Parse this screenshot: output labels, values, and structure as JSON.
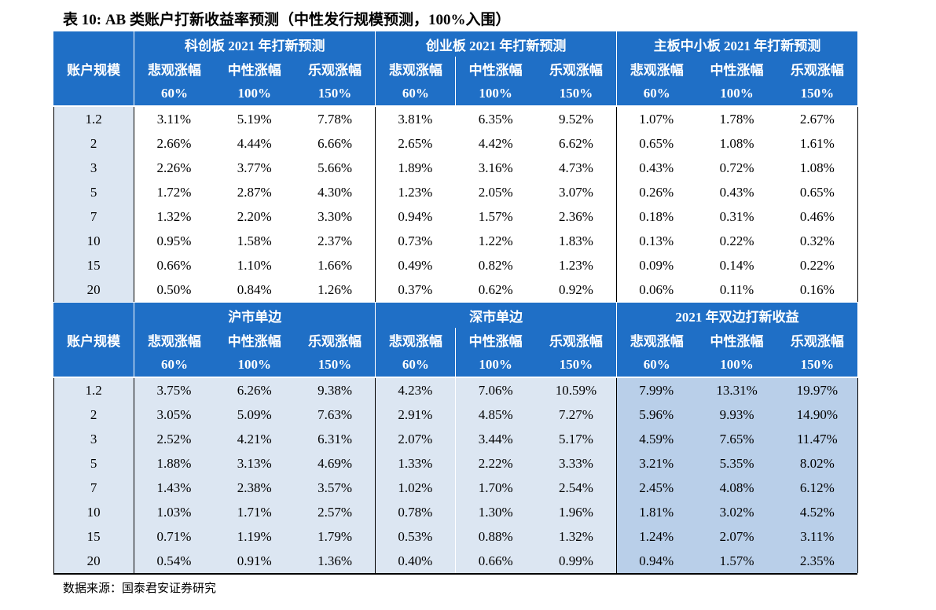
{
  "title": "表 10: AB 类账户打新收益率预测（中性发行规模预测，100%入围）",
  "blocks": [
    {
      "row_header": "账户规模",
      "groups": [
        "科创板 2021 年打新预测",
        "创业板 2021 年打新预测",
        "主板中小板 2021 年打新预测"
      ],
      "subheaders": [
        {
          "label": "悲观涨幅",
          "pct": "60%"
        },
        {
          "label": "中性涨幅",
          "pct": "100%"
        },
        {
          "label": "乐观涨幅",
          "pct": "150%"
        },
        {
          "label": "悲观涨幅",
          "pct": "60%"
        },
        {
          "label": "中性涨幅",
          "pct": "100%"
        },
        {
          "label": "乐观涨幅",
          "pct": "150%"
        },
        {
          "label": "悲观涨幅",
          "pct": "60%"
        },
        {
          "label": "中性涨幅",
          "pct": "100%"
        },
        {
          "label": "乐观涨幅",
          "pct": "150%"
        }
      ],
      "rows": [
        {
          "scale": "1.2",
          "values": [
            "3.11%",
            "5.19%",
            "7.78%",
            "3.81%",
            "6.35%",
            "9.52%",
            "1.07%",
            "1.78%",
            "2.67%"
          ]
        },
        {
          "scale": "2",
          "values": [
            "2.66%",
            "4.44%",
            "6.66%",
            "2.65%",
            "4.42%",
            "6.62%",
            "0.65%",
            "1.08%",
            "1.61%"
          ]
        },
        {
          "scale": "3",
          "values": [
            "2.26%",
            "3.77%",
            "5.66%",
            "1.89%",
            "3.16%",
            "4.73%",
            "0.43%",
            "0.72%",
            "1.08%"
          ]
        },
        {
          "scale": "5",
          "values": [
            "1.72%",
            "2.87%",
            "4.30%",
            "1.23%",
            "2.05%",
            "3.07%",
            "0.26%",
            "0.43%",
            "0.65%"
          ]
        },
        {
          "scale": "7",
          "values": [
            "1.32%",
            "2.20%",
            "3.30%",
            "0.94%",
            "1.57%",
            "2.36%",
            "0.18%",
            "0.31%",
            "0.46%"
          ]
        },
        {
          "scale": "10",
          "values": [
            "0.95%",
            "1.58%",
            "2.37%",
            "0.73%",
            "1.22%",
            "1.83%",
            "0.13%",
            "0.22%",
            "0.32%"
          ]
        },
        {
          "scale": "15",
          "values": [
            "0.66%",
            "1.10%",
            "1.66%",
            "0.49%",
            "0.82%",
            "1.23%",
            "0.09%",
            "0.14%",
            "0.22%"
          ]
        },
        {
          "scale": "20",
          "values": [
            "0.50%",
            "0.84%",
            "1.26%",
            "0.37%",
            "0.62%",
            "0.92%",
            "0.06%",
            "0.11%",
            "0.16%"
          ]
        }
      ]
    },
    {
      "row_header": "账户规模",
      "groups": [
        "沪市单边",
        "深市单边",
        "2021 年双边打新收益"
      ],
      "subheaders": [
        {
          "label": "悲观涨幅",
          "pct": "60%"
        },
        {
          "label": "中性涨幅",
          "pct": "100%"
        },
        {
          "label": "乐观涨幅",
          "pct": "150%"
        },
        {
          "label": "悲观涨幅",
          "pct": "60%"
        },
        {
          "label": "中性涨幅",
          "pct": "100%"
        },
        {
          "label": "乐观涨幅",
          "pct": "150%"
        },
        {
          "label": "悲观涨幅",
          "pct": "60%"
        },
        {
          "label": "中性涨幅",
          "pct": "100%"
        },
        {
          "label": "乐观涨幅",
          "pct": "150%"
        }
      ],
      "rows": [
        {
          "scale": "1.2",
          "values": [
            "3.75%",
            "6.26%",
            "9.38%",
            "4.23%",
            "7.06%",
            "10.59%",
            "7.99%",
            "13.31%",
            "19.97%"
          ]
        },
        {
          "scale": "2",
          "values": [
            "3.05%",
            "5.09%",
            "7.63%",
            "2.91%",
            "4.85%",
            "7.27%",
            "5.96%",
            "9.93%",
            "14.90%"
          ]
        },
        {
          "scale": "3",
          "values": [
            "2.52%",
            "4.21%",
            "6.31%",
            "2.07%",
            "3.44%",
            "5.17%",
            "4.59%",
            "7.65%",
            "11.47%"
          ]
        },
        {
          "scale": "5",
          "values": [
            "1.88%",
            "3.13%",
            "4.69%",
            "1.33%",
            "2.22%",
            "3.33%",
            "3.21%",
            "5.35%",
            "8.02%"
          ]
        },
        {
          "scale": "7",
          "values": [
            "1.43%",
            "2.38%",
            "3.57%",
            "1.02%",
            "1.70%",
            "2.54%",
            "2.45%",
            "4.08%",
            "6.12%"
          ]
        },
        {
          "scale": "10",
          "values": [
            "1.03%",
            "1.71%",
            "2.57%",
            "0.78%",
            "1.30%",
            "1.96%",
            "1.81%",
            "3.02%",
            "4.52%"
          ]
        },
        {
          "scale": "15",
          "values": [
            "0.71%",
            "1.19%",
            "1.79%",
            "0.53%",
            "0.88%",
            "1.32%",
            "1.24%",
            "2.07%",
            "3.11%"
          ]
        },
        {
          "scale": "20",
          "values": [
            "0.54%",
            "0.91%",
            "1.36%",
            "0.40%",
            "0.66%",
            "0.99%",
            "0.94%",
            "1.57%",
            "2.35%"
          ]
        }
      ]
    }
  ],
  "source": "数据来源：国泰君安证券研究"
}
